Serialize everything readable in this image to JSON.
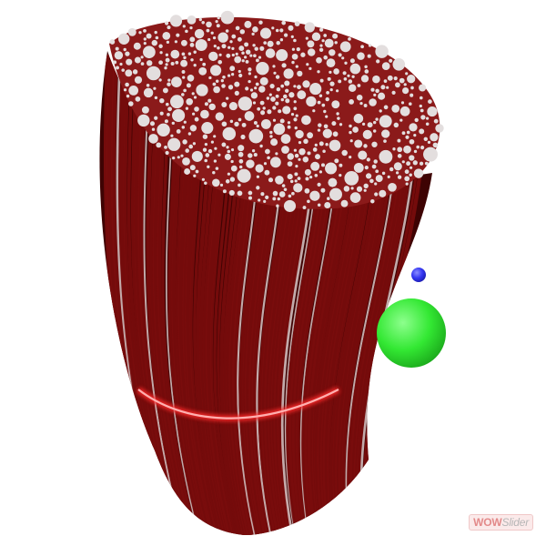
{
  "scene": {
    "background_color": "#ffffff",
    "bundle": {
      "fiber_color": "#7a0c0c",
      "fiber_dark_color": "#3e0303",
      "fiber_highlight_color": "#d9c8c8",
      "top_face_color": "#8b1a1a",
      "cross_section_circle_color": "#e3dede",
      "ring_glow_color": "#ff2a2a"
    },
    "small_sphere_color": "#3436f2",
    "large_sphere_color": "#33e833"
  },
  "watermark": {
    "part_a": "WOW",
    "part_b": "Slider",
    "accent_color": "#e38a8a",
    "muted_color": "#b6b6b6"
  }
}
